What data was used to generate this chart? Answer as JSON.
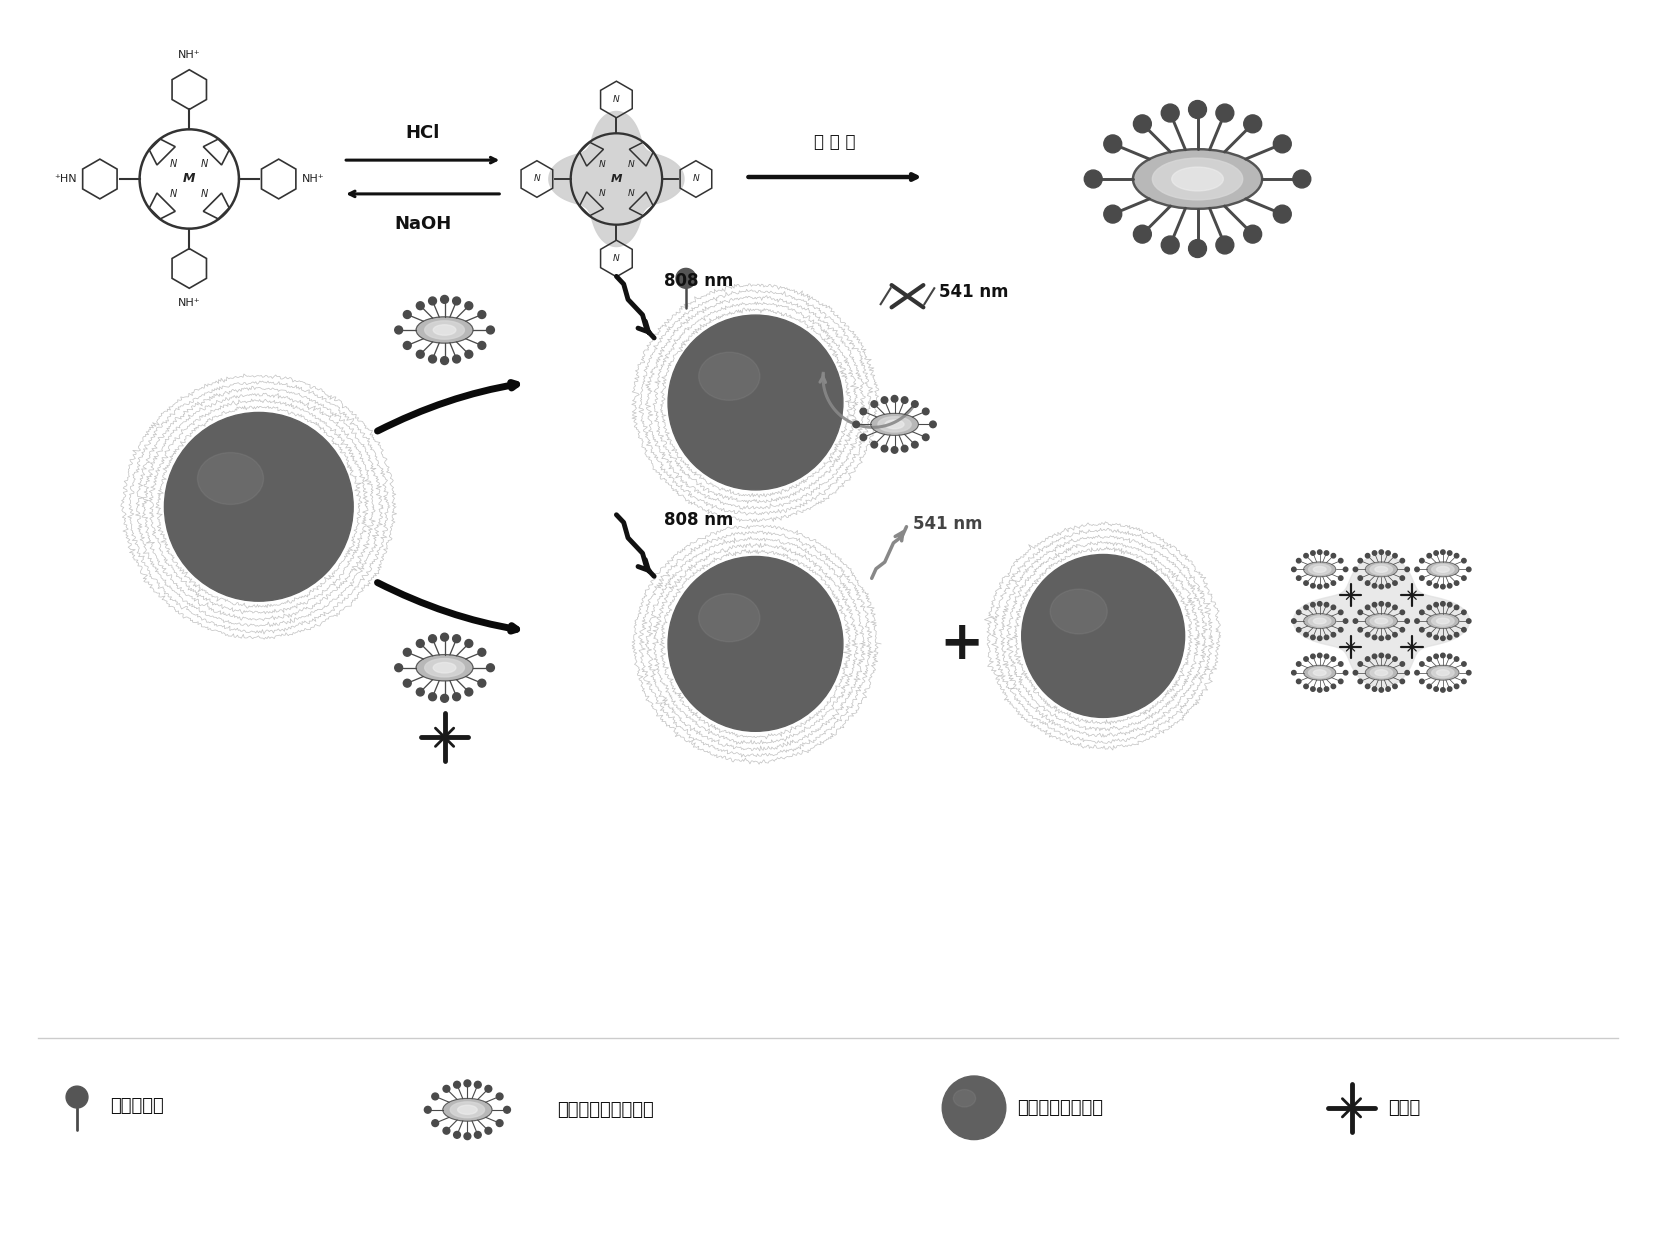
{
  "bg_color": "#ffffff",
  "label_surfactant": "表面活性剂",
  "label_selfassembly": "自组装纳米卟啉材料",
  "label_upconversion": "水溶性上转换材料",
  "label_chromium": "六价铬",
  "arrow_hcl": "HCl",
  "arrow_naoh": "NaOH",
  "arrow_self": "自 组 装",
  "label_808nm": "808 nm",
  "label_541nm": "541 nm",
  "col_sphere": "#606060",
  "col_dark": "#222222",
  "col_mid": "#666666",
  "col_light": "#aaaaaa",
  "col_vlight": "#d0d0d0"
}
